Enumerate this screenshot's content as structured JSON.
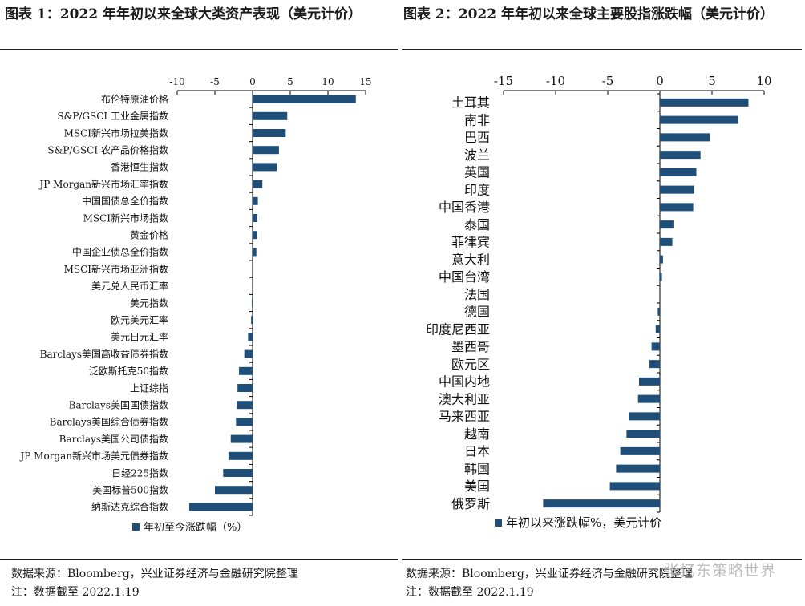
{
  "header": {
    "title_left": "图表 1：2022 年年初以来全球大类资产表现（美元计价）",
    "title_right": "图表 2：2022 年年初以来全球主要股指涨跌幅（美元计价）"
  },
  "footer": {
    "source_left": "数据来源：Bloomberg，兴业证券经济与金融研究院整理",
    "note_left": "注：数据截至 2022.1.19",
    "source_right": "数据来源：Bloomberg，兴业证券经济与金融研究院整理",
    "note_right": "注：数据截至 2022.1.19",
    "watermark": "张忆东策略世界"
  },
  "colors": {
    "bar": "#1f4e79",
    "axis": "#000000",
    "text": "#1a1a1a"
  },
  "chart_data": [
    {
      "type": "bar",
      "orientation": "horizontal",
      "title": "图表 1：2022 年年初以来全球大类资产表现（美元计价）",
      "xlim": [
        -10,
        15
      ],
      "xticks": [
        -10,
        -5,
        0,
        5,
        10,
        15
      ],
      "x_axis_position": "top",
      "legend": "bottom-left",
      "grid": false,
      "categories": [
        "布伦特原油价格",
        "S&P/GSCI 工业金属指数",
        "MSCI新兴市场拉美指数",
        "S&P/GSCI 农产品价格指数",
        "香港恒生指数",
        "JP Morgan新兴市场汇率指数",
        "中国国债总全价指数",
        "MSCI新兴市场指数",
        "黄金价格",
        "中国企业债总全价指数",
        "MSCI新兴市场亚洲指数",
        "美元兑人民币汇率",
        "美元指数",
        "欧元美元汇率",
        "美元日元汇率",
        "Barclays美国高收益债券指数",
        "泛欧斯托克50指数",
        "上证综指",
        "Barclays美国国债指数",
        "Barclays美国综合债券指数",
        "Barclays美国公司债指数",
        "JP Morgan新兴市场美元债券指数",
        "日经225指数",
        "美国标普500指数",
        "纳斯达克综合指数"
      ],
      "series": [
        {
          "name": "年初至今涨跌幅（%）",
          "values": [
            13.7,
            4.6,
            4.4,
            3.5,
            3.2,
            1.3,
            0.7,
            0.6,
            0.6,
            0.5,
            0.0,
            0.0,
            -0.1,
            -0.2,
            -0.6,
            -1.1,
            -1.8,
            -2.0,
            -2.1,
            -2.2,
            -2.9,
            -3.2,
            -3.9,
            -5.0,
            -8.4
          ]
        }
      ]
    },
    {
      "type": "bar",
      "orientation": "horizontal",
      "title": "图表 2：2022 年年初以来全球主要股指涨跌幅（美元计价）",
      "xlim": [
        -15,
        10
      ],
      "xticks": [
        -15,
        -10,
        -5,
        0,
        5,
        10
      ],
      "x_axis_position": "top",
      "legend": "bottom-left",
      "grid": false,
      "categories": [
        "土耳其",
        "南非",
        "巴西",
        "波兰",
        "英国",
        "印度",
        "中国香港",
        "泰国",
        "菲律宾",
        "意大利",
        "中国台湾",
        "法国",
        "德国",
        "印度尼西亚",
        "墨西哥",
        "欧元区",
        "中国内地",
        "澳大利亚",
        "马来西亚",
        "越南",
        "日本",
        "韩国",
        "美国",
        "俄罗斯"
      ],
      "series": [
        {
          "name": "年初以来涨跌幅%，美元计价",
          "values": [
            8.5,
            7.5,
            4.8,
            3.9,
            3.5,
            3.3,
            3.2,
            1.3,
            1.2,
            0.3,
            0.2,
            0.0,
            -0.2,
            -0.4,
            -0.8,
            -1.0,
            -2.0,
            -2.1,
            -3.0,
            -3.2,
            -3.8,
            -4.2,
            -4.8,
            -11.2
          ]
        }
      ]
    }
  ]
}
